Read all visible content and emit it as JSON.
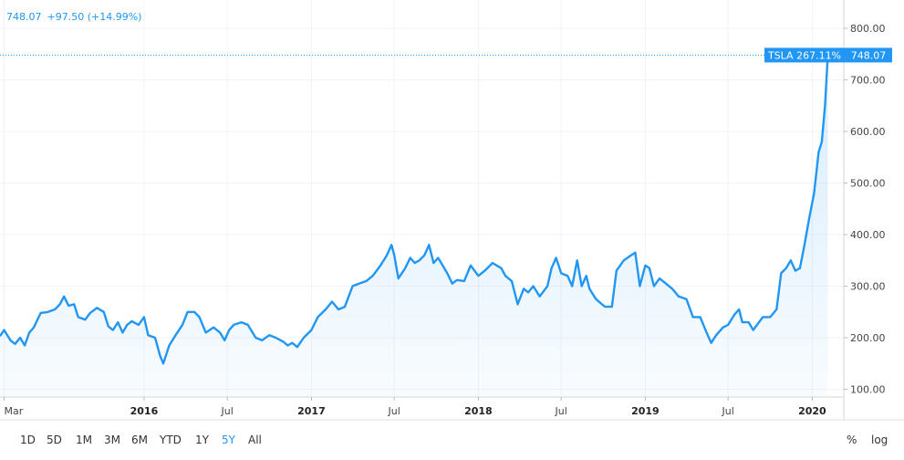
{
  "header": {
    "price": "748.07",
    "change": "+97.50 (+14.99%)"
  },
  "last_label": {
    "symbol_change": "TSLA 267.11%",
    "price": "748.07"
  },
  "range_buttons": [
    {
      "label": "1D",
      "active": false
    },
    {
      "label": "5D",
      "active": false
    },
    {
      "label": "1M",
      "active": false
    },
    {
      "label": "3M",
      "active": false
    },
    {
      "label": "6M",
      "active": false
    },
    {
      "label": "YTD",
      "active": false
    },
    {
      "label": "1Y",
      "active": false
    },
    {
      "label": "5Y",
      "active": true
    },
    {
      "label": "All",
      "active": false
    }
  ],
  "options": {
    "percent": "%",
    "log": "log"
  },
  "colors": {
    "line": "#2196f3",
    "accent": "#2196f3"
  },
  "chart_data": {
    "type": "area",
    "ylim": [
      85,
      855
    ],
    "yticks": [
      100,
      200,
      300,
      400,
      500,
      600,
      700,
      800
    ],
    "ytick_labels": [
      "100.00",
      "200.00",
      "300.00",
      "400.00",
      "500.00",
      "600.00",
      "700.00",
      "800.00"
    ],
    "xlim": [
      "2015-02-20",
      "2020-03-10"
    ],
    "xticks": [
      {
        "date": "2015-03-01",
        "label": "Mar",
        "major": false
      },
      {
        "date": "2016-01-01",
        "label": "2016",
        "major": true
      },
      {
        "date": "2016-07-01",
        "label": "Jul",
        "major": false
      },
      {
        "date": "2017-01-01",
        "label": "2017",
        "major": true
      },
      {
        "date": "2017-07-01",
        "label": "Jul",
        "major": false
      },
      {
        "date": "2018-01-01",
        "label": "2018",
        "major": true
      },
      {
        "date": "2018-07-01",
        "label": "Jul",
        "major": false
      },
      {
        "date": "2019-01-01",
        "label": "2019",
        "major": true
      },
      {
        "date": "2019-07-01",
        "label": "Jul",
        "major": false
      },
      {
        "date": "2020-01-01",
        "label": "2020",
        "major": true
      }
    ],
    "last_value": 748.07,
    "series": [
      {
        "name": "TSLA",
        "points": [
          [
            "2015-02-20",
            203
          ],
          [
            "2015-03-01",
            215
          ],
          [
            "2015-03-15",
            195
          ],
          [
            "2015-03-25",
            188
          ],
          [
            "2015-04-05",
            200
          ],
          [
            "2015-04-15",
            185
          ],
          [
            "2015-04-25",
            210
          ],
          [
            "2015-05-05",
            220
          ],
          [
            "2015-05-20",
            248
          ],
          [
            "2015-06-05",
            250
          ],
          [
            "2015-06-20",
            255
          ],
          [
            "2015-07-01",
            265
          ],
          [
            "2015-07-10",
            280
          ],
          [
            "2015-07-20",
            262
          ],
          [
            "2015-08-01",
            265
          ],
          [
            "2015-08-10",
            240
          ],
          [
            "2015-08-25",
            235
          ],
          [
            "2015-09-05",
            248
          ],
          [
            "2015-09-20",
            258
          ],
          [
            "2015-10-05",
            250
          ],
          [
            "2015-10-15",
            222
          ],
          [
            "2015-10-25",
            215
          ],
          [
            "2015-11-05",
            230
          ],
          [
            "2015-11-15",
            210
          ],
          [
            "2015-11-25",
            225
          ],
          [
            "2015-12-05",
            232
          ],
          [
            "2015-12-20",
            225
          ],
          [
            "2016-01-01",
            240
          ],
          [
            "2016-01-10",
            205
          ],
          [
            "2016-01-25",
            200
          ],
          [
            "2016-02-05",
            165
          ],
          [
            "2016-02-12",
            150
          ],
          [
            "2016-02-25",
            185
          ],
          [
            "2016-03-10",
            205
          ],
          [
            "2016-03-25",
            225
          ],
          [
            "2016-04-05",
            250
          ],
          [
            "2016-04-20",
            250
          ],
          [
            "2016-05-01",
            240
          ],
          [
            "2016-05-15",
            210
          ],
          [
            "2016-06-01",
            220
          ],
          [
            "2016-06-15",
            210
          ],
          [
            "2016-06-25",
            195
          ],
          [
            "2016-07-05",
            215
          ],
          [
            "2016-07-15",
            225
          ],
          [
            "2016-08-01",
            230
          ],
          [
            "2016-08-15",
            225
          ],
          [
            "2016-09-01",
            200
          ],
          [
            "2016-09-15",
            195
          ],
          [
            "2016-10-01",
            205
          ],
          [
            "2016-10-15",
            200
          ],
          [
            "2016-11-01",
            192
          ],
          [
            "2016-11-10",
            185
          ],
          [
            "2016-11-20",
            190
          ],
          [
            "2016-12-01",
            182
          ],
          [
            "2016-12-15",
            200
          ],
          [
            "2017-01-01",
            215
          ],
          [
            "2017-01-15",
            240
          ],
          [
            "2017-02-01",
            255
          ],
          [
            "2017-02-15",
            270
          ],
          [
            "2017-03-01",
            255
          ],
          [
            "2017-03-15",
            260
          ],
          [
            "2017-04-01",
            300
          ],
          [
            "2017-04-15",
            305
          ],
          [
            "2017-05-01",
            310
          ],
          [
            "2017-05-15",
            320
          ],
          [
            "2017-06-01",
            340
          ],
          [
            "2017-06-15",
            360
          ],
          [
            "2017-06-25",
            380
          ],
          [
            "2017-07-01",
            360
          ],
          [
            "2017-07-10",
            315
          ],
          [
            "2017-07-25",
            335
          ],
          [
            "2017-08-05",
            355
          ],
          [
            "2017-08-15",
            345
          ],
          [
            "2017-08-25",
            350
          ],
          [
            "2017-09-05",
            360
          ],
          [
            "2017-09-15",
            380
          ],
          [
            "2017-09-25",
            345
          ],
          [
            "2017-10-05",
            355
          ],
          [
            "2017-10-15",
            340
          ],
          [
            "2017-10-25",
            325
          ],
          [
            "2017-11-05",
            305
          ],
          [
            "2017-11-15",
            312
          ],
          [
            "2017-12-01",
            310
          ],
          [
            "2017-12-15",
            340
          ],
          [
            "2018-01-01",
            320
          ],
          [
            "2018-01-15",
            330
          ],
          [
            "2018-02-01",
            345
          ],
          [
            "2018-02-10",
            340
          ],
          [
            "2018-02-20",
            335
          ],
          [
            "2018-03-01",
            320
          ],
          [
            "2018-03-15",
            310
          ],
          [
            "2018-03-28",
            265
          ],
          [
            "2018-04-10",
            295
          ],
          [
            "2018-04-20",
            288
          ],
          [
            "2018-05-01",
            300
          ],
          [
            "2018-05-15",
            280
          ],
          [
            "2018-06-01",
            300
          ],
          [
            "2018-06-10",
            335
          ],
          [
            "2018-06-20",
            355
          ],
          [
            "2018-07-01",
            325
          ],
          [
            "2018-07-15",
            320
          ],
          [
            "2018-07-25",
            300
          ],
          [
            "2018-08-05",
            350
          ],
          [
            "2018-08-15",
            300
          ],
          [
            "2018-08-25",
            320
          ],
          [
            "2018-09-01",
            295
          ],
          [
            "2018-09-15",
            275
          ],
          [
            "2018-09-28",
            265
          ],
          [
            "2018-10-05",
            260
          ],
          [
            "2018-10-20",
            260
          ],
          [
            "2018-10-30",
            330
          ],
          [
            "2018-11-15",
            350
          ],
          [
            "2018-12-01",
            360
          ],
          [
            "2018-12-10",
            365
          ],
          [
            "2018-12-20",
            300
          ],
          [
            "2019-01-01",
            340
          ],
          [
            "2019-01-10",
            335
          ],
          [
            "2019-01-20",
            300
          ],
          [
            "2019-02-01",
            315
          ],
          [
            "2019-02-15",
            305
          ],
          [
            "2019-03-01",
            295
          ],
          [
            "2019-03-15",
            280
          ],
          [
            "2019-04-01",
            275
          ],
          [
            "2019-04-15",
            240
          ],
          [
            "2019-05-01",
            240
          ],
          [
            "2019-05-15",
            210
          ],
          [
            "2019-05-25",
            190
          ],
          [
            "2019-06-05",
            205
          ],
          [
            "2019-06-20",
            220
          ],
          [
            "2019-07-01",
            225
          ],
          [
            "2019-07-15",
            245
          ],
          [
            "2019-07-25",
            255
          ],
          [
            "2019-08-01",
            230
          ],
          [
            "2019-08-15",
            230
          ],
          [
            "2019-08-25",
            215
          ],
          [
            "2019-09-05",
            228
          ],
          [
            "2019-09-15",
            240
          ],
          [
            "2019-10-01",
            240
          ],
          [
            "2019-10-15",
            255
          ],
          [
            "2019-10-25",
            325
          ],
          [
            "2019-11-05",
            335
          ],
          [
            "2019-11-15",
            350
          ],
          [
            "2019-11-25",
            330
          ],
          [
            "2019-12-05",
            335
          ],
          [
            "2019-12-15",
            380
          ],
          [
            "2019-12-25",
            430
          ],
          [
            "2020-01-05",
            480
          ],
          [
            "2020-01-15",
            560
          ],
          [
            "2020-01-22",
            580
          ],
          [
            "2020-01-29",
            650
          ],
          [
            "2020-02-04",
            748.07
          ]
        ]
      }
    ]
  }
}
